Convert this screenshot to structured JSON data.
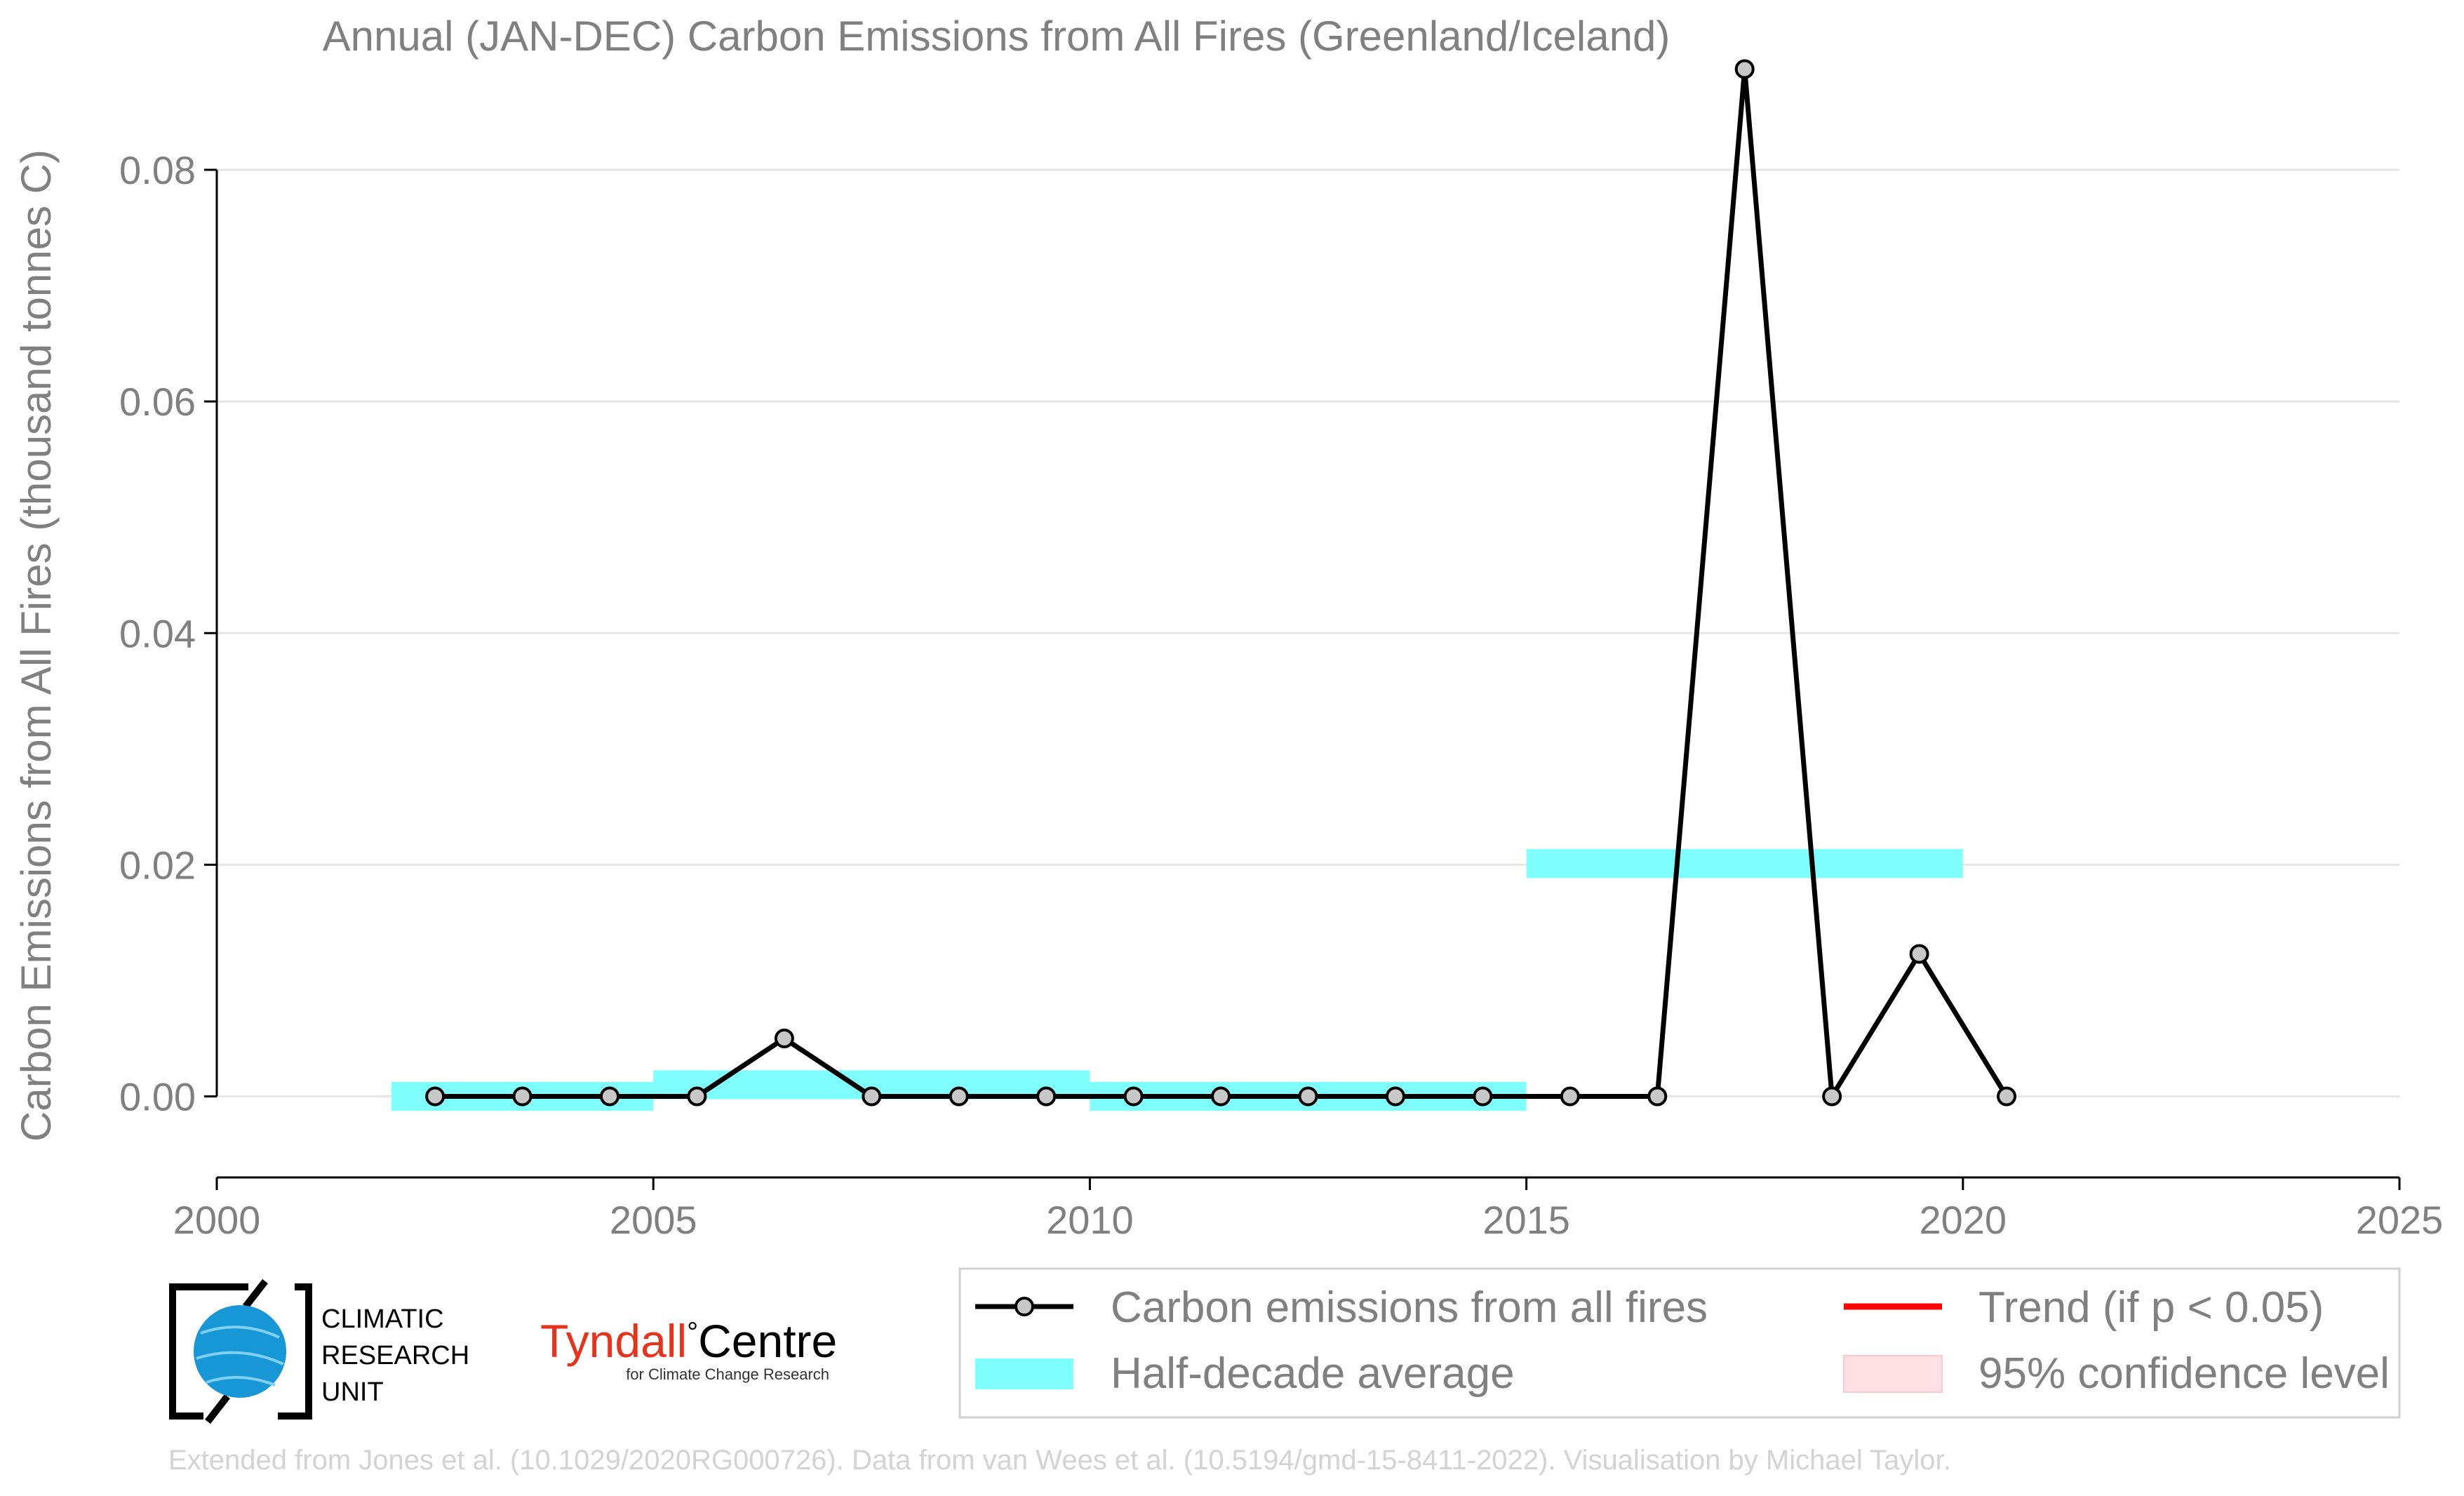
{
  "chart_data": {
    "type": "line",
    "title": "Annual (JAN-DEC) Carbon Emissions from All Fires (Greenland/Iceland)",
    "xlabel": "",
    "ylabel": "Carbon Emissions from All Fires (thousand tonnes C)",
    "xlim": [
      2000,
      2025
    ],
    "ylim": [
      -0.007,
      0.088
    ],
    "xticks": [
      "2000",
      "2005",
      "2010",
      "2015",
      "2020",
      "2025"
    ],
    "yticks": [
      "0.00",
      "0.02",
      "0.04",
      "0.06",
      "0.08"
    ],
    "grid": "horizontal",
    "legend_position": "bottom",
    "series": [
      {
        "name": "Carbon emissions from all fires",
        "color": "#000000",
        "x": [
          2002.5,
          2003.5,
          2004.5,
          2005.5,
          2006.5,
          2007.5,
          2008.5,
          2009.5,
          2010.5,
          2011.5,
          2012.5,
          2013.5,
          2014.5,
          2015.5,
          2016.5,
          2017.5,
          2018.5,
          2019.5,
          2020.5
        ],
        "y": [
          0.0,
          0.0,
          0.0,
          0.0,
          0.005,
          0.0,
          0.0,
          0.0,
          0.0,
          0.0,
          0.0,
          0.0,
          0.0,
          0.0,
          0.0,
          0.0887,
          0.0,
          0.0123,
          0.0
        ]
      },
      {
        "name": "Half-decade average",
        "color": "#80ffff",
        "segments": [
          {
            "x": [
              2002,
              2005
            ],
            "y": 0.0
          },
          {
            "x": [
              2005,
              2010
            ],
            "y": 0.001
          },
          {
            "x": [
              2010,
              2015
            ],
            "y": 0.0
          },
          {
            "x": [
              2015,
              2020
            ],
            "y": 0.0201
          }
        ]
      },
      {
        "name": "Trend (if p < 0.05)",
        "color": "#ff0000",
        "x": [],
        "y": []
      },
      {
        "name": "95% confidence level",
        "color": "#ffe0e4",
        "x": [],
        "y": []
      }
    ]
  },
  "logos": {
    "cru_lines": [
      "CLIMATIC",
      "RESEARCH",
      "UNIT"
    ],
    "tyndall_main": "Tyndall",
    "tyndall_degree": "°",
    "tyndall_centre": "Centre",
    "tyndall_sub": "for Climate Change Research"
  },
  "footer": "Extended from Jones et al. (10.1029/2020RG000726). Data from van Wees et al. (10.5194/gmd-15-8411-2022). Visualisation by Michael Taylor."
}
